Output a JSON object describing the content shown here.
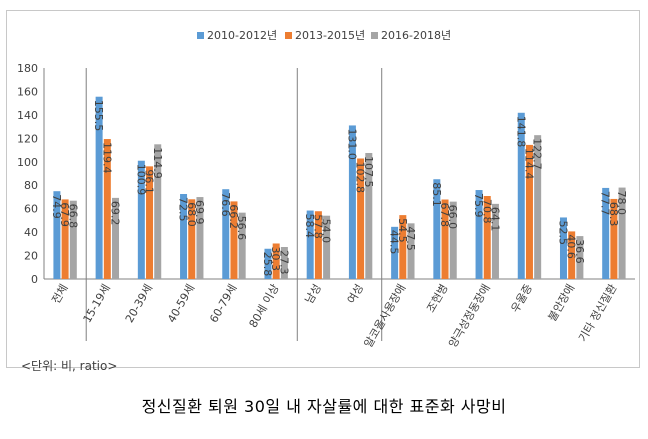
{
  "chart_data": {
    "type": "bar",
    "categories": [
      "전체",
      "15-19세",
      "20-39세",
      "40-59세",
      "60-79세",
      "80세 이상",
      "남성",
      "여성",
      "알코올사용장애",
      "조현병",
      "양극성정동장애",
      "우울증",
      "불안장애",
      "기타 정신질환"
    ],
    "series": [
      {
        "name": "2010-2012년",
        "values": [
          74.9,
          155.5,
          100.9,
          72.5,
          76.6,
          25.8,
          58.4,
          131.0,
          44.5,
          85.1,
          75.9,
          141.8,
          52.5,
          77.7
        ],
        "labels": [
          "74.9",
          "155.5",
          "100.9",
          "72.5",
          "76.6",
          "25.8",
          "58.4",
          "131.0",
          "44.5",
          "85.1",
          "75.9",
          "141.8",
          "52.5",
          "77.7"
        ]
      },
      {
        "name": "2013-2015년",
        "values": [
          67.9,
          119.4,
          96.1,
          68.0,
          66.2,
          30.3,
          57.8,
          102.8,
          54.5,
          67.8,
          70.8,
          114.4,
          40.6,
          68.3
        ],
        "labels": [
          "67.9",
          "119.4",
          "96.1",
          "68.0",
          "66.2",
          "30.3",
          "57.8",
          "102.8",
          "54.5",
          "67.8",
          "70.8",
          "114.4",
          "40.6",
          "68.3"
        ]
      },
      {
        "name": "2016-2018년",
        "values": [
          66.8,
          69.2,
          114.9,
          69.9,
          56.6,
          27.3,
          54.0,
          107.5,
          47.5,
          66.0,
          64.1,
          122.7,
          36.6,
          78.0
        ],
        "labels": [
          "66.8",
          "69.2",
          "114.9",
          "69.9",
          "56.6",
          "27.3",
          "54.0",
          "107.5",
          "47.5",
          "66.0",
          "64.1",
          "122.7",
          "36.6",
          "78.0"
        ]
      }
    ],
    "ylim": [
      0,
      180
    ],
    "yticks": [
      "0",
      "20",
      "40",
      "60",
      "80",
      "100",
      "120",
      "140",
      "160",
      "180"
    ],
    "colors": [
      "#5b9bd5",
      "#ed7d31",
      "#a5a5a5"
    ],
    "group_separators_after": [
      0,
      5,
      7
    ],
    "legend": "top",
    "grid": false,
    "unit_note": "<단위: 비, ratio>"
  },
  "caption": "정신질환 퇴원 30일 내 자살률에 대한 표준화 사망비"
}
